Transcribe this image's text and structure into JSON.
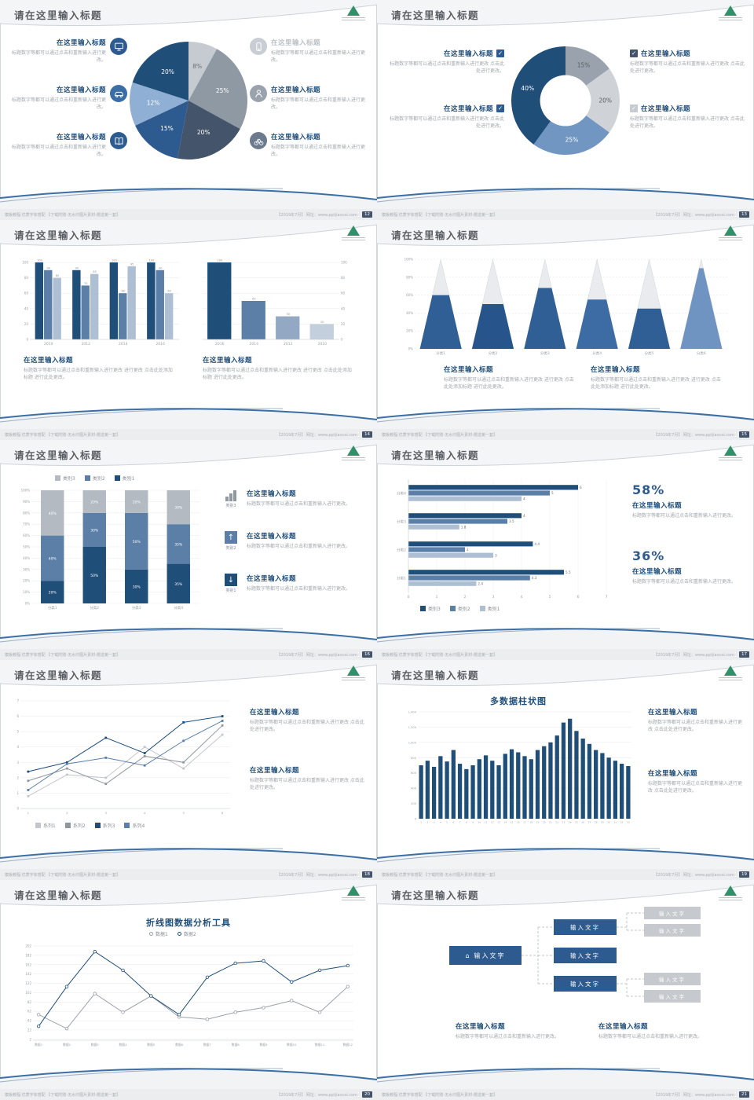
{
  "common": {
    "slide_title": "请在这里输入标题",
    "ph_title": "在这里输入标题",
    "ph_body": "标题数字等都可以通过点击和重新输入进行更改。",
    "ph_body2": "标题数字等都可以通过点击和重新输入进行更改 点击此处进行更改。",
    "ph_body3": "标题数字等都可以通过点击和重新输入进行更改 进行更改 点击此处添加标题 进行此处更改。",
    "check_glyph": "✓",
    "house_glyph": "⌂",
    "up_arrow": "↑",
    "down_arrow": "↓",
    "input_text": "输入文字",
    "footer_left": "模板教程:优质字体搭配 【下载附赠-无水印图片素材-赠送第一套】",
    "footer_right": "【2019年7月】 网址：www.pptjiaocai.com"
  },
  "slides": {
    "s12": {
      "page": "12"
    },
    "s13": {
      "page": "13",
      "cb_colors": [
        "#2e5b8f",
        "#2e5b8f",
        "#44546a",
        "#c6cbd1"
      ]
    },
    "s14": {
      "page": "14"
    },
    "s15": {
      "page": "15"
    },
    "s16": {
      "page": "16",
      "icon_labels": [
        "类别3",
        "类别2",
        "类别1"
      ]
    },
    "s17": {
      "page": "17",
      "stat1": "58%",
      "stat2": "36%"
    },
    "s18": {
      "page": "18"
    },
    "s19": {
      "page": "19",
      "chart_title": "多数据柱状图"
    },
    "s20": {
      "page": "20",
      "chart_title": "折线图数据分析工具"
    },
    "s21": {
      "page": "21"
    }
  },
  "chart_data": [
    {
      "id": "pie12",
      "type": "pie",
      "slices": [
        {
          "value": 8,
          "color": "#c6cbd2",
          "label_color": "#6b7075"
        },
        {
          "value": 25,
          "color": "#8f99a4",
          "label_color": "#ffffff"
        },
        {
          "value": 20,
          "color": "#44546a",
          "label_color": "#ffffff"
        },
        {
          "value": 15,
          "color": "#2e5b8f",
          "label_color": "#ffffff"
        },
        {
          "value": 12,
          "color": "#8fb0d4",
          "label_color": "#ffffff"
        },
        {
          "value": 20,
          "color": "#1f4e79",
          "label_color": "#ffffff"
        }
      ]
    },
    {
      "id": "donut13",
      "type": "donut",
      "hole": 0.47,
      "slices": [
        {
          "value": 15,
          "color": "#9aa3ad",
          "label_color": "#565c64"
        },
        {
          "value": 20,
          "color": "#cfd3d8",
          "label_color": "#565c64"
        },
        {
          "value": 25,
          "color": "#7096c1",
          "label_color": "#ffffff"
        },
        {
          "value": 40,
          "color": "#1f4e79",
          "label_color": "#ffffff"
        }
      ]
    },
    {
      "id": "bars14a",
      "type": "grouped-bar",
      "pad": [
        16,
        8,
        4,
        12
      ],
      "categories": [
        "2010",
        "2012",
        "2014",
        "2016"
      ],
      "ymax": 100,
      "yticks": [
        0,
        20,
        40,
        60,
        80,
        100
      ],
      "bar_labels": true,
      "series": [
        {
          "name": "系列1",
          "color": "#1f4e79",
          "values": [
            100,
            90,
            100,
            100
          ]
        },
        {
          "name": "系列2",
          "color": "#5b7fa6",
          "values": [
            90,
            70,
            60,
            90
          ]
        },
        {
          "name": "系列3",
          "color": "#aebfd3",
          "values": [
            80,
            85,
            95,
            60
          ]
        }
      ]
    },
    {
      "id": "bars14b",
      "type": "bar",
      "pad": [
        6,
        8,
        20,
        12
      ],
      "axis_left": false,
      "axis_right": true,
      "categories": [
        "2016",
        "2014",
        "2012",
        "2010"
      ],
      "ymax": 100,
      "yticks": [
        0,
        20,
        40,
        60,
        80,
        100
      ],
      "bar_labels": true,
      "bar_colors": [
        "#1f4e79",
        "#5b7fa6",
        "#93a9c3",
        "#c3cfdd"
      ],
      "series": [
        {
          "name": "数据",
          "color": "#1f4e79",
          "values": [
            100,
            50,
            30,
            20
          ]
        }
      ]
    },
    {
      "id": "pyramid15",
      "type": "pyramid",
      "pad": [
        20,
        6,
        6,
        12
      ],
      "categories": [
        "分类1",
        "分类2",
        "分类3",
        "分类4",
        "分类5",
        "分类6"
      ],
      "values": [
        60,
        50,
        68,
        55,
        45,
        90
      ],
      "colors": [
        "#2f5f95",
        "#27548a",
        "#2f5f95",
        "#3c6ca3",
        "#2f5f95",
        "#6f94c2"
      ],
      "yticks": [
        0,
        20,
        40,
        60,
        80,
        100
      ]
    },
    {
      "id": "stack16",
      "type": "stacked-bar",
      "pad": [
        18,
        6,
        6,
        12
      ],
      "categories": [
        "分类1",
        "分类2",
        "分类3",
        "分类4"
      ],
      "yticks": [
        0,
        10,
        20,
        30,
        40,
        50,
        60,
        70,
        80,
        90,
        100
      ],
      "series": [
        {
          "name": "类别1",
          "color": "#1f4e79",
          "values": [
            20,
            50,
            30,
            35
          ]
        },
        {
          "name": "类别2",
          "color": "#5b7fa6",
          "values": [
            40,
            30,
            50,
            35
          ]
        },
        {
          "name": "类别3",
          "color": "#b3bac2",
          "values": [
            40,
            20,
            20,
            30
          ]
        }
      ]
    },
    {
      "id": "hbar17",
      "type": "hbar",
      "pad": [
        26,
        4,
        12,
        12
      ],
      "categories": [
        "分类1",
        "分类2",
        "分类3",
        "分类4"
      ],
      "xmax": 7,
      "xticks": [
        0,
        1,
        2,
        3,
        4,
        5,
        6,
        7
      ],
      "series": [
        {
          "name": "类别3",
          "color": "#1f4e79",
          "values": [
            5.5,
            4.4,
            4,
            6
          ]
        },
        {
          "name": "类别2",
          "color": "#5b7fa6",
          "values": [
            4.3,
            2,
            3.5,
            5
          ]
        },
        {
          "name": "类别1",
          "color": "#aebfd3",
          "values": [
            2.4,
            3,
            1.8,
            4
          ]
        }
      ]
    },
    {
      "id": "line18",
      "type": "line",
      "pad": [
        12,
        6,
        6,
        12
      ],
      "marker": "square",
      "x": [
        "1",
        "2",
        "3",
        "4",
        "5",
        "6"
      ],
      "ymax": 7,
      "yticks": [
        0,
        1,
        2,
        3,
        4,
        5,
        6,
        7
      ],
      "series": [
        {
          "name": "系列1",
          "color": "#c3c7cd",
          "values": [
            0.8,
            2.2,
            2,
            4,
            2.6,
            4.8
          ]
        },
        {
          "name": "系列2",
          "color": "#8f979f",
          "values": [
            1.8,
            2.6,
            1.6,
            3.4,
            3,
            5.4
          ]
        },
        {
          "name": "系列3",
          "color": "#1f4e79",
          "values": [
            2.4,
            3,
            4.6,
            3.6,
            5.6,
            6
          ]
        },
        {
          "name": "系列4",
          "color": "#5b7fa6",
          "values": [
            1.2,
            2.9,
            3.3,
            2.8,
            4.4,
            5.7
          ]
        }
      ]
    },
    {
      "id": "col19",
      "type": "column",
      "pad": [
        24,
        6,
        4,
        10
      ],
      "color": "#1f4e79",
      "ymax": 1400,
      "yticks": [
        0,
        200,
        400,
        600,
        800,
        1000,
        1200,
        1400
      ],
      "ytick_labels": [
        "0",
        "200",
        "400",
        "600",
        "800",
        "1,000",
        "1,200",
        "1,400"
      ],
      "values": [
        700,
        760,
        680,
        820,
        750,
        900,
        720,
        650,
        700,
        780,
        830,
        760,
        700,
        850,
        910,
        870,
        820,
        780,
        900,
        950,
        1000,
        1090,
        1260,
        1310,
        1150,
        1050,
        980,
        900,
        860,
        800,
        760,
        720,
        690
      ]
    },
    {
      "id": "line20",
      "type": "line",
      "pad": [
        20,
        6,
        8,
        12
      ],
      "marker": "circle",
      "x": [
        "数据1",
        "数据2",
        "数据3",
        "数据4",
        "数据5",
        "数据6",
        "数据7",
        "数据8",
        "数据9",
        "数据10",
        "数据11",
        "数据12"
      ],
      "ymax": 202,
      "yticks": [
        2,
        22,
        42,
        62,
        82,
        102,
        122,
        142,
        162,
        182,
        202
      ],
      "series": [
        {
          "name": "数据1",
          "color": "#9aa1a9",
          "values": [
            55,
            25,
            100,
            60,
            95,
            50,
            45,
            60,
            70,
            85,
            60,
            115
          ]
        },
        {
          "name": "数据2",
          "color": "#1f4e79",
          "values": [
            30,
            115,
            190,
            150,
            95,
            55,
            135,
            165,
            170,
            125,
            150,
            160
          ]
        }
      ]
    }
  ]
}
